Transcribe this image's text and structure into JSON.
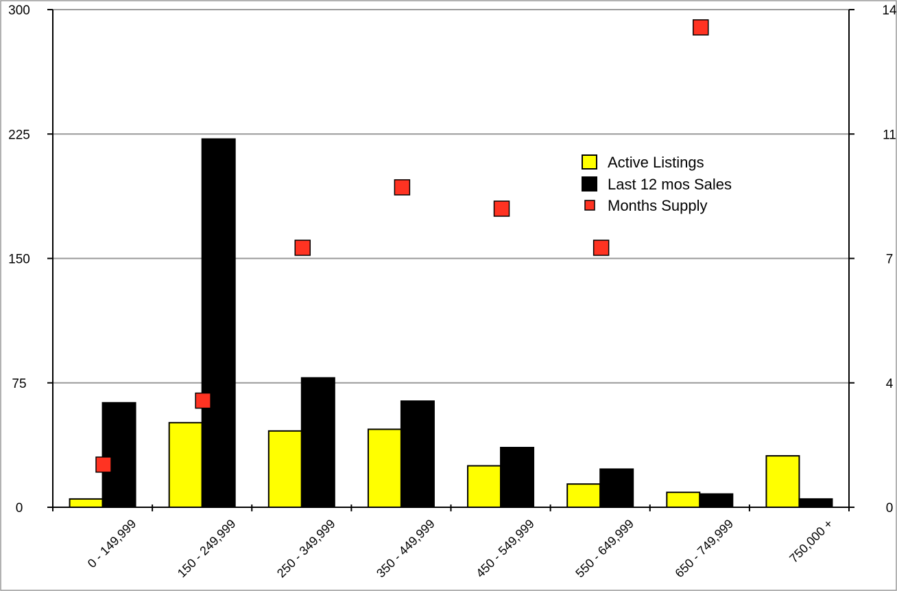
{
  "chart_data": {
    "type": "bar",
    "categories": [
      "0 - 149,999",
      "150 - 249,999",
      "250 - 349,999",
      "350 - 449,999",
      "450 - 549,999",
      "550 - 649,999",
      "650 - 749,999",
      "750,000 +"
    ],
    "series": [
      {
        "name": "Active Listings",
        "type": "bar",
        "axis": "left",
        "color": "#ffff00",
        "values": [
          5,
          51,
          46,
          47,
          25,
          14,
          9,
          31
        ]
      },
      {
        "name": "Last 12 mos Sales",
        "type": "bar",
        "axis": "left",
        "color": "#000000",
        "values": [
          63,
          222,
          78,
          64,
          36,
          23,
          8,
          5
        ]
      },
      {
        "name": "Months Supply",
        "type": "scatter",
        "axis": "right",
        "color": "#ff3322",
        "values": [
          1.2,
          3.0,
          7.3,
          9.0,
          8.4,
          7.3,
          13.5,
          null
        ]
      }
    ],
    "y_left": {
      "ylim": [
        0,
        300
      ],
      "ticks": [
        "0",
        "75",
        "150",
        "225",
        "300"
      ]
    },
    "y_right": {
      "ylim": [
        0,
        14
      ],
      "ticks": [
        "0",
        "4",
        "7",
        "11",
        "14"
      ]
    },
    "grid": true,
    "legend_position": "upper-right-inside"
  }
}
